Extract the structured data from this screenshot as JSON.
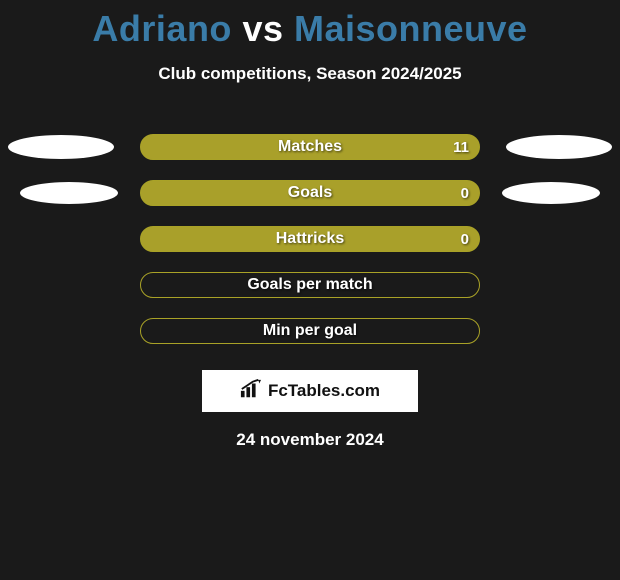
{
  "title": {
    "player1": "Adriano",
    "vs": "vs",
    "player2": "Maisonneuve"
  },
  "subtitle": "Club competitions, Season 2024/2025",
  "stats": [
    {
      "label": "Matches",
      "value": "11",
      "filled": true,
      "left_shape": "big",
      "right_shape": "big"
    },
    {
      "label": "Goals",
      "value": "0",
      "filled": true,
      "left_shape": "small",
      "right_shape": "small"
    },
    {
      "label": "Hattricks",
      "value": "0",
      "filled": true,
      "left_shape": "none",
      "right_shape": "none"
    },
    {
      "label": "Goals per match",
      "value": "",
      "filled": false,
      "left_shape": "none",
      "right_shape": "none"
    },
    {
      "label": "Min per goal",
      "value": "",
      "filled": false,
      "left_shape": "none",
      "right_shape": "none"
    }
  ],
  "brand": "FcTables.com",
  "date": "24 november 2024",
  "colors": {
    "bg": "#1a1a1a",
    "bar_fill": "#a9a02a",
    "bar_border": "#a9a227",
    "title_blue": "#3a7ca8",
    "white": "#ffffff"
  }
}
